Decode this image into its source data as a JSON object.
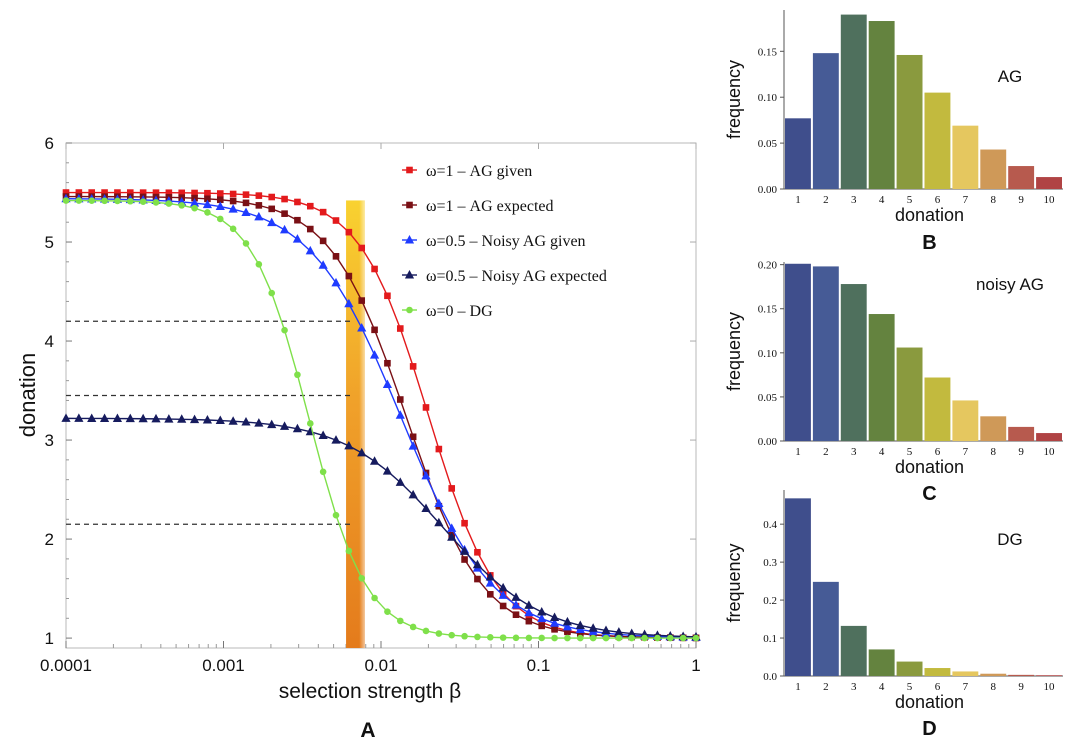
{
  "panel_labels": {
    "A": "A",
    "B": "B",
    "C": "C",
    "D": "D"
  },
  "colors": {
    "ag_given": "#e31a1c",
    "ag_expected": "#7a1015",
    "noisy_given": "#1f3bff",
    "noisy_expected": "#161b5e",
    "dg": "#7fe04a",
    "dashed": "#333333"
  },
  "chart_data": [
    {
      "type": "line",
      "panel": "A",
      "xlabel": "selection strength β",
      "ylabel": "donation",
      "xscale": "log",
      "xlim": [
        0.0001,
        1
      ],
      "ylim": [
        0.9,
        6
      ],
      "xticks": [
        0.0001,
        0.001,
        0.01,
        0.1,
        1
      ],
      "xtick_labels": [
        "0.0001",
        "0.001",
        "0.01",
        "0.1",
        "1"
      ],
      "yticks": [
        1,
        2,
        3,
        4,
        5,
        6
      ],
      "ytick_labels": [
        "1",
        "2",
        "3",
        "4",
        "5",
        "6"
      ],
      "legend_position": "top-right",
      "highlight_band": {
        "x_from": 0.006,
        "x_to": 0.0079,
        "y_top": 5.42
      },
      "reference_lines": [
        {
          "y": 4.2,
          "x_from": 0.0001,
          "x_to": 0.0065
        },
        {
          "y": 3.45,
          "x_from": 0.0001,
          "x_to": 0.0065
        },
        {
          "y": 2.15,
          "x_from": 0.0001,
          "x_to": 0.0065
        }
      ],
      "series": [
        {
          "name": "ω=1 – AG given",
          "color_key": "ag_given",
          "marker": "square",
          "params": {
            "top": 5.5,
            "mid": 0.02,
            "p": 2.0
          }
        },
        {
          "name": "ω=1 – AG expected",
          "color_key": "ag_expected",
          "marker": "square",
          "params": {
            "top": 5.46,
            "mid": 0.0145,
            "p": 1.8
          }
        },
        {
          "name": "ω=0.5 – Noisy AG given",
          "color_key": "noisy_given",
          "marker": "triangle",
          "params": {
            "top": 5.44,
            "mid": 0.0135,
            "p": 1.5
          }
        },
        {
          "name": "ω=0.5 – Noisy AG expected",
          "color_key": "noisy_expected",
          "marker": "triangle",
          "params": {
            "top": 3.22,
            "mid": 0.025,
            "p": 1.4
          }
        },
        {
          "name": "ω=0 – DG",
          "color_key": "dg",
          "marker": "circle",
          "params": {
            "top": 5.42,
            "mid": 0.0035,
            "p": 2.4
          }
        }
      ]
    },
    {
      "type": "bar",
      "panel": "B",
      "title": "AG",
      "xlabel": "donation",
      "ylabel": "frequency",
      "ylim": [
        0,
        0.195
      ],
      "yticks": [
        0,
        0.05,
        0.1,
        0.15
      ],
      "ytick_labels": [
        "0.00",
        "0.05",
        "0.10",
        "0.15"
      ],
      "categories": [
        "1",
        "2",
        "3",
        "4",
        "5",
        "6",
        "7",
        "8",
        "9",
        "10"
      ],
      "values": [
        0.077,
        0.148,
        0.19,
        0.183,
        0.146,
        0.105,
        0.069,
        0.043,
        0.025,
        0.013
      ],
      "bar_colors": [
        "#3f4e8c",
        "#465b96",
        "#4f705d",
        "#64833f",
        "#8a9a3e",
        "#c2ba3e",
        "#e5c75f",
        "#cf9958",
        "#b75a4e",
        "#b04344"
      ]
    },
    {
      "type": "bar",
      "panel": "C",
      "title": "noisy AG",
      "xlabel": "donation",
      "ylabel": "frequency",
      "ylim": [
        0,
        0.203
      ],
      "yticks": [
        0,
        0.05,
        0.1,
        0.15,
        0.2
      ],
      "ytick_labels": [
        "0.00",
        "0.05",
        "0.10",
        "0.15",
        "0.20"
      ],
      "categories": [
        "1",
        "2",
        "3",
        "4",
        "5",
        "6",
        "7",
        "8",
        "9",
        "10"
      ],
      "values": [
        0.201,
        0.198,
        0.178,
        0.144,
        0.106,
        0.072,
        0.046,
        0.028,
        0.016,
        0.009
      ],
      "bar_colors": [
        "#3f4e8c",
        "#465b96",
        "#4f705d",
        "#64833f",
        "#8a9a3e",
        "#c2ba3e",
        "#e5c75f",
        "#cf9958",
        "#b75a4e",
        "#b04344"
      ]
    },
    {
      "type": "bar",
      "panel": "D",
      "title": "DG",
      "xlabel": "donation",
      "ylabel": "frequency",
      "ylim": [
        0,
        0.49
      ],
      "yticks": [
        0,
        0.1,
        0.2,
        0.3,
        0.4
      ],
      "ytick_labels": [
        "0.0",
        "0.1",
        "0.2",
        "0.3",
        "0.4"
      ],
      "categories": [
        "1",
        "2",
        "3",
        "4",
        "5",
        "6",
        "7",
        "8",
        "9",
        "10"
      ],
      "values": [
        0.468,
        0.248,
        0.132,
        0.07,
        0.038,
        0.021,
        0.012,
        0.006,
        0.003,
        0.002
      ],
      "bar_colors": [
        "#3f4e8c",
        "#465b96",
        "#4f705d",
        "#64833f",
        "#8a9a3e",
        "#c2ba3e",
        "#e5c75f",
        "#cf9958",
        "#b75a4e",
        "#b04344"
      ]
    }
  ]
}
